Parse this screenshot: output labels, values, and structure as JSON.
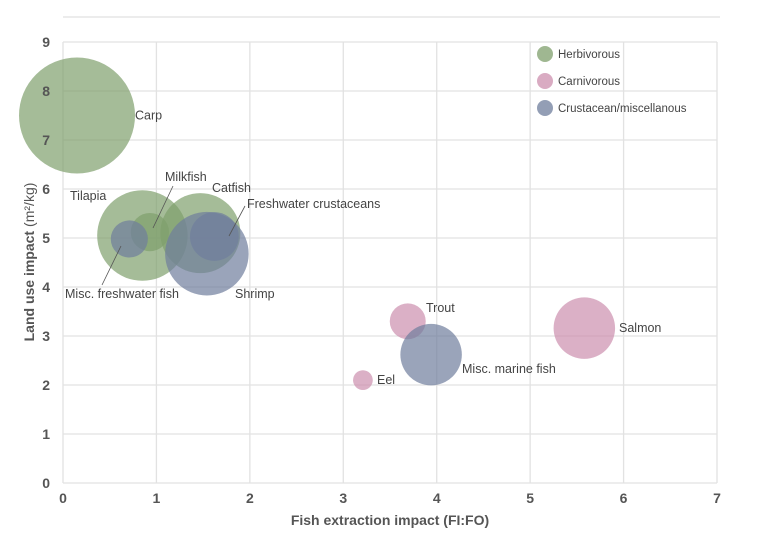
{
  "chart_data": {
    "type": "bubble",
    "title": "",
    "xlabel": "Fish extraction impact (FI:FO)",
    "ylabel_bold": "Land use impact",
    "ylabel_unit": "(m²/kg)",
    "xlim": [
      0,
      7
    ],
    "ylim": [
      0,
      9
    ],
    "xticks": [
      "0",
      "1",
      "2",
      "3",
      "4",
      "5",
      "6",
      "7"
    ],
    "yticks": [
      "0",
      "1",
      "2",
      "3",
      "4",
      "5",
      "6",
      "7",
      "8",
      "9"
    ],
    "grid": true,
    "legend_position": "top-right",
    "groups": [
      {
        "name": "Herbivorous",
        "color": "#7f9f6c"
      },
      {
        "name": "Carnivorous",
        "color": "#cc8fae"
      },
      {
        "name": "Crustacean/miscellanous",
        "color": "#6f7e9c"
      }
    ],
    "points": [
      {
        "label": "Carp",
        "group": 0,
        "x": 0.15,
        "y": 7.5,
        "relative_size": 1.0
      },
      {
        "label": "Tilapia",
        "group": 0,
        "x": 0.85,
        "y": 5.05,
        "relative_size": 0.78
      },
      {
        "label": "Catfish",
        "group": 0,
        "x": 1.47,
        "y": 5.1,
        "relative_size": 0.69
      },
      {
        "label": "Shrimp",
        "group": 2,
        "x": 1.54,
        "y": 4.68,
        "relative_size": 0.72
      },
      {
        "label": "Milkfish",
        "group": 0,
        "x": 0.93,
        "y": 5.12,
        "relative_size": 0.33
      },
      {
        "label": "Misc. freshwater fish",
        "group": 2,
        "x": 0.71,
        "y": 4.98,
        "relative_size": 0.32
      },
      {
        "label": "Freshwater crustaceans",
        "group": 2,
        "x": 1.62,
        "y": 5.03,
        "relative_size": 0.42
      },
      {
        "label": "Trout",
        "group": 1,
        "x": 3.69,
        "y": 3.3,
        "relative_size": 0.31
      },
      {
        "label": "Eel",
        "group": 1,
        "x": 3.21,
        "y": 2.1,
        "relative_size": 0.17
      },
      {
        "label": "Misc. marine fish",
        "group": 2,
        "x": 3.94,
        "y": 2.62,
        "relative_size": 0.53
      },
      {
        "label": "Salmon",
        "group": 1,
        "x": 5.58,
        "y": 3.16,
        "relative_size": 0.53
      }
    ]
  }
}
